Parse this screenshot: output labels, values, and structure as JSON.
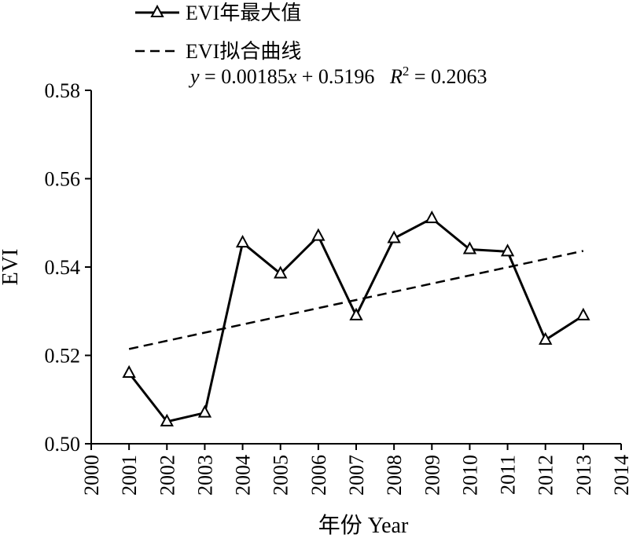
{
  "chart_data": {
    "type": "line",
    "xlabel": "年份 Year",
    "ylabel": "EVI",
    "xlim": [
      2000,
      2014
    ],
    "ylim": [
      0.5,
      0.58
    ],
    "x_ticks": [
      2000,
      2001,
      2002,
      2003,
      2004,
      2005,
      2006,
      2007,
      2008,
      2009,
      2010,
      2011,
      2012,
      2013,
      2014
    ],
    "y_ticks": [
      0.5,
      0.52,
      0.54,
      0.56,
      0.58
    ],
    "x_tick_labels": [
      "2000",
      "2001",
      "2002",
      "2003",
      "2004",
      "2005",
      "2006",
      "2007",
      "2008",
      "2009",
      "2010",
      "2011",
      "2012",
      "2013",
      "2014"
    ],
    "y_tick_labels": [
      "0.50",
      "0.52",
      "0.54",
      "0.56",
      "0.58"
    ],
    "series": [
      {
        "name": "EVI年最大值",
        "style": "solid-triangle",
        "x": [
          2001,
          2002,
          2003,
          2004,
          2005,
          2006,
          2007,
          2008,
          2009,
          2010,
          2011,
          2012,
          2013
        ],
        "values": [
          0.516,
          0.505,
          0.507,
          0.5455,
          0.5385,
          0.547,
          0.529,
          0.5465,
          0.551,
          0.544,
          0.5435,
          0.5235,
          0.529
        ]
      },
      {
        "name": "EVI拟合曲线",
        "style": "dashed",
        "x": [
          2001,
          2013
        ],
        "values": [
          0.52145,
          0.54365
        ]
      }
    ],
    "legend": {
      "placement": "top-left",
      "entries": [
        "EVI年最大值",
        "EVI拟合曲线"
      ]
    },
    "equation_text": {
      "y": "y",
      "eq1": " = 0.00185",
      "x": "x",
      "eq2": " + 0.5196   ",
      "R": "R",
      "sup": "2",
      "eq3": " = 0.2063"
    }
  }
}
